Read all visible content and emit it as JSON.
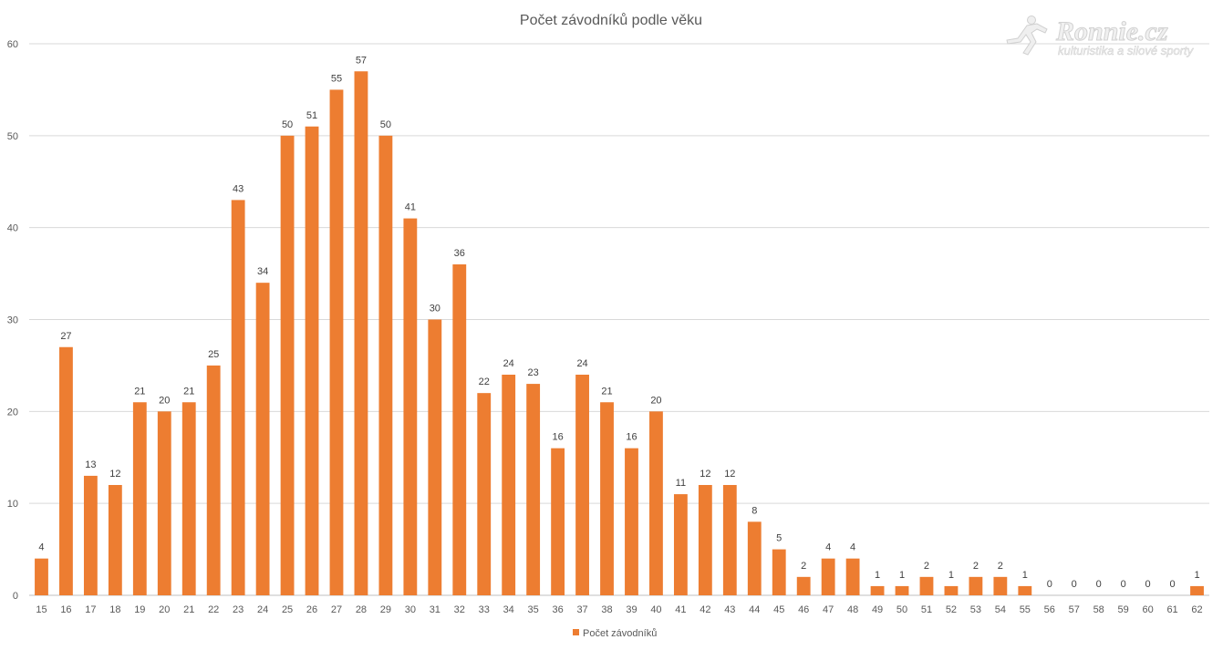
{
  "chart_data": {
    "type": "bar",
    "title": "Počet závodníků podle věku",
    "xlabel": "",
    "ylabel": "",
    "ylim": [
      0,
      60
    ],
    "yticks": [
      0,
      10,
      20,
      30,
      40,
      50,
      60
    ],
    "grid": true,
    "legend": "bottom",
    "categories": [
      "15",
      "16",
      "17",
      "18",
      "19",
      "20",
      "21",
      "22",
      "23",
      "24",
      "25",
      "26",
      "27",
      "28",
      "29",
      "30",
      "31",
      "32",
      "33",
      "34",
      "35",
      "36",
      "37",
      "38",
      "39",
      "40",
      "41",
      "42",
      "43",
      "44",
      "45",
      "46",
      "47",
      "48",
      "49",
      "50",
      "51",
      "52",
      "53",
      "54",
      "55",
      "56",
      "57",
      "58",
      "59",
      "60",
      "61",
      "62"
    ],
    "series": [
      {
        "name": "Počet závodníků",
        "color": "#ed7d31",
        "values": [
          4,
          27,
          13,
          12,
          21,
          20,
          21,
          25,
          43,
          34,
          50,
          51,
          55,
          57,
          50,
          41,
          30,
          36,
          22,
          24,
          23,
          16,
          24,
          21,
          16,
          20,
          11,
          12,
          12,
          8,
          5,
          2,
          4,
          4,
          1,
          1,
          2,
          1,
          2,
          2,
          1,
          0,
          0,
          0,
          0,
          0,
          0,
          1
        ]
      }
    ]
  },
  "logo": {
    "main": "Ronnie.cz",
    "sub": "kulturistika a silové sporty",
    "icon": "runner-icon"
  }
}
